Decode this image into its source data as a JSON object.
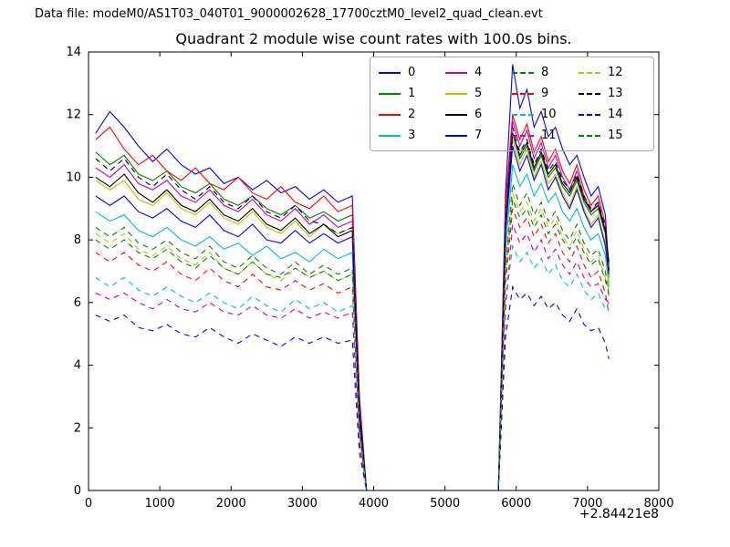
{
  "header": {
    "data_file_label": "Data file: modeM0/AS1T03_040T01_9000002628_17700cztM0_level2_quad_clean.evt"
  },
  "chart_data": {
    "type": "line",
    "title": "Quadrant 2 module wise count rates with 100.0s bins.",
    "xlabel": "",
    "ylabel": "",
    "xlim": [
      0,
      8000
    ],
    "ylim": [
      0,
      14
    ],
    "xticks": [
      0,
      1000,
      2000,
      3000,
      4000,
      5000,
      6000,
      7000,
      8000
    ],
    "yticks": [
      0,
      2,
      4,
      6,
      8,
      10,
      12,
      14
    ],
    "x_offset_label": "+2.84421e8",
    "grid": false,
    "legend_position": "upper center",
    "legend_columns": 4,
    "x": [
      100,
      300,
      500,
      700,
      900,
      1100,
      1300,
      1500,
      1700,
      1900,
      2100,
      2300,
      2500,
      2700,
      2900,
      3100,
      3300,
      3500,
      3700,
      3800,
      3900,
      4300,
      4700,
      5100,
      5500,
      5750,
      5850,
      5950,
      6050,
      6150,
      6250,
      6350,
      6450,
      6550,
      6650,
      6750,
      6850,
      6950,
      7050,
      7150,
      7250,
      7300
    ],
    "series": [
      {
        "name": "0",
        "color": "#0000ff",
        "style": "solid",
        "values": [
          11.4,
          12.1,
          11.6,
          11.0,
          10.5,
          10.9,
          10.4,
          10.1,
          10.3,
          9.8,
          10.0,
          9.6,
          9.9,
          9.5,
          9.7,
          9.3,
          9.6,
          9.2,
          9.4,
          3.0,
          0,
          0,
          0,
          0,
          0,
          0,
          9.5,
          13.6,
          12.2,
          12.8,
          11.6,
          12.1,
          11.3,
          11.6,
          10.9,
          10.4,
          10.7,
          10.0,
          9.4,
          9.7,
          8.8,
          7.0
        ]
      },
      {
        "name": "1",
        "color": "#007f00",
        "style": "solid",
        "values": [
          10.8,
          10.4,
          10.7,
          10.1,
          9.9,
          10.2,
          9.7,
          9.5,
          9.8,
          9.3,
          9.1,
          9.4,
          9.0,
          8.8,
          9.1,
          8.7,
          8.9,
          8.6,
          8.8,
          2.6,
          0,
          0,
          0,
          0,
          0,
          0,
          8.9,
          11.4,
          10.6,
          11.0,
          10.2,
          10.7,
          10.0,
          10.3,
          9.7,
          9.4,
          9.9,
          9.2,
          8.8,
          9.0,
          8.2,
          6.8
        ]
      },
      {
        "name": "2",
        "color": "#ff0000",
        "style": "solid",
        "values": [
          11.2,
          11.6,
          10.9,
          10.4,
          10.7,
          10.2,
          9.9,
          10.3,
          9.8,
          9.6,
          10.0,
          9.5,
          9.3,
          9.7,
          9.2,
          9.0,
          9.4,
          8.9,
          9.1,
          2.8,
          0,
          0,
          0,
          0,
          0,
          0,
          9.2,
          12.0,
          11.2,
          11.7,
          10.8,
          11.3,
          10.5,
          10.9,
          10.2,
          9.8,
          10.4,
          9.6,
          9.1,
          9.4,
          8.5,
          7.2
        ]
      },
      {
        "name": "3",
        "color": "#00bfbf",
        "style": "solid",
        "values": [
          8.9,
          8.6,
          8.8,
          8.3,
          8.1,
          8.4,
          8.0,
          7.8,
          8.1,
          7.7,
          7.9,
          7.5,
          7.8,
          7.4,
          7.6,
          7.3,
          7.7,
          7.4,
          7.6,
          2.2,
          0,
          0,
          0,
          0,
          0,
          0,
          7.7,
          10.4,
          9.7,
          10.1,
          9.4,
          9.8,
          9.2,
          9.5,
          8.9,
          8.6,
          9.0,
          8.4,
          8.0,
          8.2,
          7.5,
          6.5
        ]
      },
      {
        "name": "4",
        "color": "#bf00bf",
        "style": "solid",
        "values": [
          10.3,
          10.0,
          10.4,
          9.8,
          9.6,
          9.9,
          9.4,
          9.2,
          9.6,
          9.1,
          8.9,
          9.3,
          8.8,
          8.6,
          9.0,
          8.5,
          8.8,
          8.4,
          8.6,
          2.5,
          0,
          0,
          0,
          0,
          0,
          0,
          8.7,
          11.8,
          11.0,
          11.5,
          10.6,
          11.1,
          10.3,
          10.7,
          10.0,
          9.6,
          10.2,
          9.4,
          8.9,
          9.2,
          8.3,
          7.1
        ]
      },
      {
        "name": "5",
        "color": "#bfbf00",
        "style": "solid",
        "values": [
          9.9,
          9.6,
          9.9,
          9.3,
          9.1,
          9.5,
          9.0,
          8.8,
          9.2,
          8.7,
          8.5,
          8.9,
          8.4,
          8.2,
          8.6,
          8.1,
          8.5,
          8.2,
          8.4,
          2.4,
          0,
          0,
          0,
          0,
          0,
          0,
          8.5,
          11.2,
          10.4,
          10.9,
          10.0,
          10.5,
          9.8,
          10.1,
          9.5,
          9.1,
          9.7,
          9.0,
          8.5,
          8.8,
          7.9,
          6.6
        ]
      },
      {
        "name": "6",
        "color": "#000000",
        "style": "solid",
        "values": [
          10.0,
          9.7,
          10.1,
          9.5,
          9.2,
          9.6,
          9.1,
          8.9,
          9.3,
          8.8,
          8.6,
          9.0,
          8.5,
          8.3,
          8.7,
          8.2,
          8.5,
          8.1,
          8.3,
          2.5,
          0,
          0,
          0,
          0,
          0,
          0,
          8.4,
          11.4,
          10.7,
          11.1,
          10.3,
          10.8,
          10.1,
          10.4,
          9.8,
          9.5,
          10.0,
          9.3,
          8.9,
          9.1,
          8.3,
          7.3
        ]
      },
      {
        "name": "7",
        "color": "#0000ff",
        "style": "solid",
        "values": [
          9.4,
          9.1,
          9.4,
          8.9,
          8.7,
          9.0,
          8.6,
          8.4,
          8.8,
          8.3,
          8.1,
          8.5,
          8.0,
          7.9,
          8.3,
          7.9,
          8.2,
          7.9,
          8.1,
          2.3,
          0,
          0,
          0,
          0,
          0,
          0,
          8.2,
          11.0,
          10.2,
          10.7,
          9.9,
          10.4,
          9.6,
          10.0,
          9.4,
          9.0,
          9.6,
          8.9,
          8.4,
          8.7,
          7.8,
          6.9
        ]
      },
      {
        "name": "8",
        "color": "#007f00",
        "style": "dashed",
        "values": [
          8.4,
          8.1,
          8.4,
          7.9,
          7.7,
          8.0,
          7.6,
          7.4,
          7.8,
          7.3,
          7.1,
          7.5,
          7.1,
          6.9,
          7.3,
          6.9,
          7.2,
          6.9,
          7.1,
          2.0,
          0,
          0,
          0,
          0,
          0,
          0,
          7.2,
          9.8,
          9.1,
          9.5,
          8.8,
          9.2,
          8.6,
          8.9,
          8.3,
          8.0,
          8.5,
          7.9,
          7.5,
          7.7,
          7.0,
          6.2
        ]
      },
      {
        "name": "9",
        "color": "#ff0000",
        "style": "dashed",
        "values": [
          7.6,
          7.3,
          7.6,
          7.2,
          7.0,
          7.3,
          6.9,
          6.7,
          7.1,
          6.7,
          6.5,
          6.9,
          6.5,
          6.4,
          6.7,
          6.4,
          6.6,
          6.3,
          6.5,
          1.8,
          0,
          0,
          0,
          0,
          0,
          0,
          6.6,
          9.0,
          8.4,
          8.7,
          8.1,
          8.5,
          7.9,
          8.2,
          7.6,
          7.3,
          7.8,
          7.2,
          6.8,
          7.0,
          6.3,
          5.6
        ]
      },
      {
        "name": "10",
        "color": "#00bfbf",
        "style": "dashed",
        "values": [
          6.8,
          6.5,
          6.8,
          6.4,
          6.2,
          6.5,
          6.2,
          6.0,
          6.3,
          6.0,
          5.8,
          6.2,
          5.9,
          5.7,
          6.1,
          5.8,
          6.0,
          5.7,
          5.9,
          1.6,
          0,
          0,
          0,
          0,
          0,
          0,
          6.0,
          7.8,
          7.3,
          7.6,
          7.1,
          7.4,
          6.9,
          7.2,
          6.7,
          6.5,
          6.9,
          6.4,
          6.1,
          6.3,
          5.8,
          6.0
        ]
      },
      {
        "name": "11",
        "color": "#bf00bf",
        "style": "dashed",
        "values": [
          6.3,
          6.1,
          6.3,
          6.0,
          5.8,
          6.1,
          5.8,
          5.7,
          6.0,
          5.7,
          5.6,
          5.9,
          5.6,
          5.5,
          5.8,
          5.5,
          5.7,
          5.5,
          5.7,
          1.5,
          0,
          0,
          0,
          0,
          0,
          0,
          5.8,
          8.5,
          7.9,
          8.2,
          7.6,
          8.0,
          7.4,
          7.7,
          7.2,
          6.9,
          7.3,
          6.8,
          6.5,
          6.6,
          6.1,
          6.0
        ]
      },
      {
        "name": "12",
        "color": "#bfbf00",
        "style": "dashed",
        "values": [
          8.2,
          7.9,
          8.2,
          7.7,
          7.5,
          7.8,
          7.4,
          7.2,
          7.6,
          7.1,
          6.9,
          7.3,
          6.9,
          6.7,
          7.1,
          6.8,
          7.0,
          6.7,
          6.9,
          1.9,
          0,
          0,
          0,
          0,
          0,
          0,
          7.0,
          9.5,
          8.9,
          9.2,
          8.6,
          9.0,
          8.4,
          8.7,
          8.1,
          7.8,
          8.3,
          7.7,
          7.3,
          7.5,
          6.8,
          6.4
        ]
      },
      {
        "name": "13",
        "color": "#000000",
        "style": "dashed",
        "values": [
          10.6,
          10.2,
          10.6,
          10.0,
          9.7,
          10.1,
          9.6,
          9.3,
          9.7,
          9.2,
          9.0,
          9.4,
          8.9,
          8.7,
          9.1,
          8.6,
          8.5,
          8.2,
          8.4,
          2.4,
          0,
          0,
          0,
          0,
          0,
          0,
          8.5,
          11.6,
          10.8,
          11.2,
          10.4,
          10.9,
          10.2,
          10.5,
          9.9,
          9.6,
          10.1,
          9.4,
          9.0,
          9.2,
          8.4,
          7.0
        ]
      },
      {
        "name": "14",
        "color": "#0000ff",
        "style": "dashed",
        "values": [
          5.6,
          5.4,
          5.6,
          5.2,
          5.1,
          5.3,
          5.0,
          4.9,
          5.2,
          4.9,
          4.7,
          5.0,
          4.8,
          4.6,
          4.9,
          4.7,
          4.9,
          4.7,
          4.8,
          1.2,
          0,
          0,
          0,
          0,
          0,
          0,
          4.9,
          6.5,
          6.1,
          6.3,
          5.9,
          6.2,
          5.8,
          6.0,
          5.6,
          5.4,
          5.8,
          5.3,
          5.1,
          5.2,
          4.7,
          4.2
        ]
      },
      {
        "name": "15",
        "color": "#007f00",
        "style": "dashed",
        "values": [
          8.0,
          7.7,
          8.0,
          7.6,
          7.4,
          7.7,
          7.3,
          7.1,
          7.5,
          7.1,
          6.9,
          7.3,
          6.9,
          6.8,
          7.1,
          6.8,
          7.0,
          6.7,
          6.9,
          1.9,
          0,
          0,
          0,
          0,
          0,
          0,
          7.0,
          9.3,
          8.7,
          9.0,
          8.4,
          8.8,
          8.2,
          8.5,
          8.0,
          7.7,
          8.1,
          7.6,
          7.2,
          7.4,
          6.7,
          6.3
        ]
      }
    ]
  }
}
